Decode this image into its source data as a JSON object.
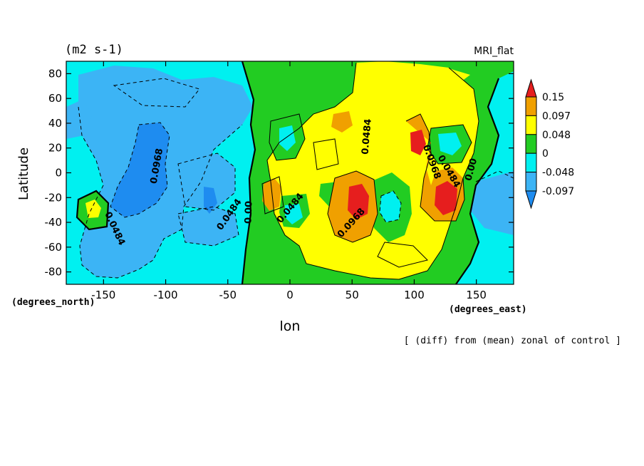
{
  "chart_data": {
    "type": "heatmap",
    "units_label": "(m2 s-1)",
    "model_label": "MRI_flat",
    "xlabel": "lon",
    "ylabel": "Latitude",
    "x_units": "(degrees_east)",
    "y_units": "(degrees_north)",
    "note": "[ (diff) from (mean) zonal of control ]",
    "xlim": [
      -180,
      180
    ],
    "ylim": [
      -90,
      90
    ],
    "x_ticks": [
      -150,
      -100,
      -50,
      0,
      50,
      100,
      150
    ],
    "y_ticks": [
      -80,
      -60,
      -40,
      -20,
      0,
      20,
      40,
      60,
      80
    ],
    "colorbar": {
      "levels": [
        "-0.097",
        "-0.048",
        "0",
        "0.048",
        "0.097",
        "0.15"
      ],
      "colors": [
        "#1e8cf0",
        "#3cb4f5",
        "#00f0f0",
        "#22cc22",
        "#ffff00",
        "#f0a000",
        "#e61e1e"
      ]
    },
    "contour_labels": [
      {
        "text": "0.0968",
        "lon": -105,
        "lat": 5,
        "angle": -80
      },
      {
        "text": "0.0484",
        "lon": -143,
        "lat": -46,
        "angle": 65
      },
      {
        "text": "0.0484",
        "lon": -47,
        "lat": -35,
        "angle": -55
      },
      {
        "text": "0.00",
        "lon": -31,
        "lat": -32,
        "angle": -88
      },
      {
        "text": "0.0484",
        "lon": 2,
        "lat": -30,
        "angle": -50
      },
      {
        "text": "0.0484",
        "lon": 64,
        "lat": 29,
        "angle": -85
      },
      {
        "text": "0.0968",
        "lon": 51,
        "lat": -42,
        "angle": -48
      },
      {
        "text": "0.0968",
        "lon": 112,
        "lat": 8,
        "angle": 70
      },
      {
        "text": "0.0484",
        "lon": 126,
        "lat": 0,
        "angle": 60
      },
      {
        "text": "0.00",
        "lon": 148,
        "lat": 2,
        "angle": -75
      }
    ]
  }
}
